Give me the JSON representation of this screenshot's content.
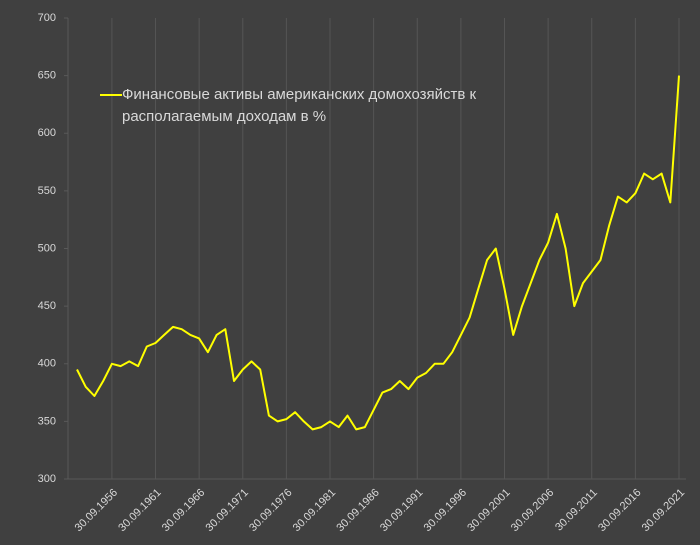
{
  "chart_data": {
    "type": "line",
    "categories": [
      null,
      null,
      null,
      null,
      "30.09.1956",
      null,
      null,
      null,
      null,
      "30.09.1961",
      null,
      null,
      null,
      null,
      "30.09.1966",
      null,
      null,
      null,
      null,
      "30.09.1971",
      null,
      null,
      null,
      null,
      "30.09.1976",
      null,
      null,
      null,
      null,
      "30.09.1981",
      null,
      null,
      null,
      null,
      "30.09.1986",
      null,
      null,
      null,
      null,
      "30.09.1991",
      null,
      null,
      null,
      null,
      "30.09.1996",
      null,
      null,
      null,
      null,
      "30.09.2001",
      null,
      null,
      null,
      null,
      "30.09.2006",
      null,
      null,
      null,
      null,
      "30.09.2011",
      null,
      null,
      null,
      null,
      "30.09.2016",
      null,
      null,
      null,
      null,
      "30.09.2021"
    ],
    "series": [
      {
        "name": "Финансовые активы американских домохозяйств к располагаемым доходам в %",
        "color": "#ffff00",
        "values": [
          395,
          380,
          372,
          385,
          400,
          398,
          402,
          398,
          415,
          418,
          425,
          432,
          430,
          425,
          422,
          410,
          425,
          430,
          385,
          395,
          402,
          395,
          355,
          350,
          352,
          358,
          350,
          343,
          345,
          350,
          345,
          355,
          343,
          345,
          360,
          375,
          378,
          385,
          378,
          388,
          392,
          400,
          400,
          410,
          425,
          440,
          465,
          490,
          500,
          465,
          425,
          450,
          470,
          490,
          505,
          530,
          500,
          450,
          470,
          480,
          490,
          520,
          545,
          540,
          548,
          565,
          560,
          565,
          540,
          650
        ]
      }
    ],
    "ylim": [
      300,
      700
    ],
    "yticks": [
      300,
      350,
      400,
      450,
      500,
      550,
      600,
      650,
      700
    ],
    "grid": true,
    "legend": "top-left"
  }
}
